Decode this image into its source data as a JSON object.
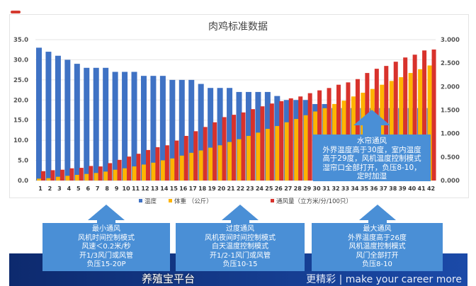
{
  "chart_data": {
    "type": "bar",
    "title": "肉鸡标准数据",
    "categories": [
      1,
      2,
      3,
      4,
      5,
      6,
      7,
      8,
      9,
      10,
      11,
      12,
      13,
      14,
      15,
      16,
      17,
      18,
      19,
      20,
      21,
      22,
      23,
      24,
      25,
      26,
      27,
      28,
      29,
      30,
      31,
      32,
      33,
      34,
      35,
      36,
      37,
      38,
      39,
      40,
      41,
      42
    ],
    "y_left": {
      "range": [
        0,
        35
      ],
      "ticks": [
        "0.0",
        "5.0",
        "10.0",
        "15.0",
        "20.0",
        "25.0",
        "30.0",
        "35.0"
      ]
    },
    "y_right": {
      "range": [
        0,
        3
      ],
      "ticks": [
        "0.000",
        "0.500",
        "1.000",
        "1.500",
        "2.000",
        "2.500",
        "3.000"
      ]
    },
    "grid": true,
    "legend_position": "bottom",
    "series": [
      {
        "name": "温度",
        "axis": "left",
        "color": "#3f72c4",
        "values": [
          33,
          32,
          31,
          30,
          29,
          28,
          28,
          28,
          27,
          27,
          27,
          26,
          26,
          26,
          25,
          25,
          25,
          24,
          23,
          23,
          23,
          22,
          22,
          22,
          22,
          21,
          20,
          20,
          20,
          19,
          19,
          18,
          18,
          18,
          18,
          18,
          18,
          18,
          18,
          18,
          18,
          18
        ]
      },
      {
        "name": "体重 （公斤）",
        "axis": "right",
        "color": "#ffb400",
        "values": [
          0.04,
          0.05,
          0.08,
          0.1,
          0.12,
          0.14,
          0.16,
          0.19,
          0.23,
          0.26,
          0.3,
          0.34,
          0.38,
          0.43,
          0.47,
          0.53,
          0.59,
          0.64,
          0.7,
          0.75,
          0.82,
          0.88,
          0.95,
          1.02,
          1.1,
          1.16,
          1.24,
          1.31,
          1.39,
          1.47,
          1.54,
          1.63,
          1.7,
          1.79,
          1.87,
          1.95,
          2.04,
          2.12,
          2.2,
          2.29,
          2.37,
          2.45
        ]
      },
      {
        "name": "通风量（立方米/分/100只）",
        "axis": "right",
        "color": "#d8322c",
        "values": [
          0.2,
          0.22,
          0.23,
          0.26,
          0.27,
          0.31,
          0.3,
          0.37,
          0.44,
          0.51,
          0.57,
          0.65,
          0.71,
          0.75,
          0.85,
          0.95,
          1.05,
          1.14,
          1.24,
          1.35,
          1.4,
          1.45,
          1.52,
          1.58,
          1.64,
          1.69,
          1.75,
          1.79,
          1.86,
          1.92,
          1.97,
          2.04,
          2.09,
          2.16,
          2.29,
          2.38,
          2.44,
          2.53,
          2.62,
          2.68,
          2.77,
          2.79
        ]
      }
    ],
    "annotations": [
      {
        "lines": [
          "水帘通风",
          "外界温度高于30度，室内温度",
          "高于29度，风机温度控制模式",
          "湿帘口全部打开，负压8-10，",
          "定时加湿"
        ]
      },
      {
        "lines": [
          "最小通风",
          "风机时间控制模式",
          "风速＜0.2米/秒",
          "开1/3风门或风管",
          "负压15-20P"
        ]
      },
      {
        "lines": [
          "过度通风",
          "风机夜间时间控制模式",
          "白天温度控制模式",
          "开1/2-1风门或风管",
          "负压10-15"
        ]
      },
      {
        "lines": [
          "最大通风",
          "外界温度高于26度",
          "风机温度控制模式",
          "风门全部打开",
          "负压8-10"
        ]
      }
    ]
  },
  "banner_text": "更精彩 | make your career more",
  "watermark": "养殖宝平台"
}
